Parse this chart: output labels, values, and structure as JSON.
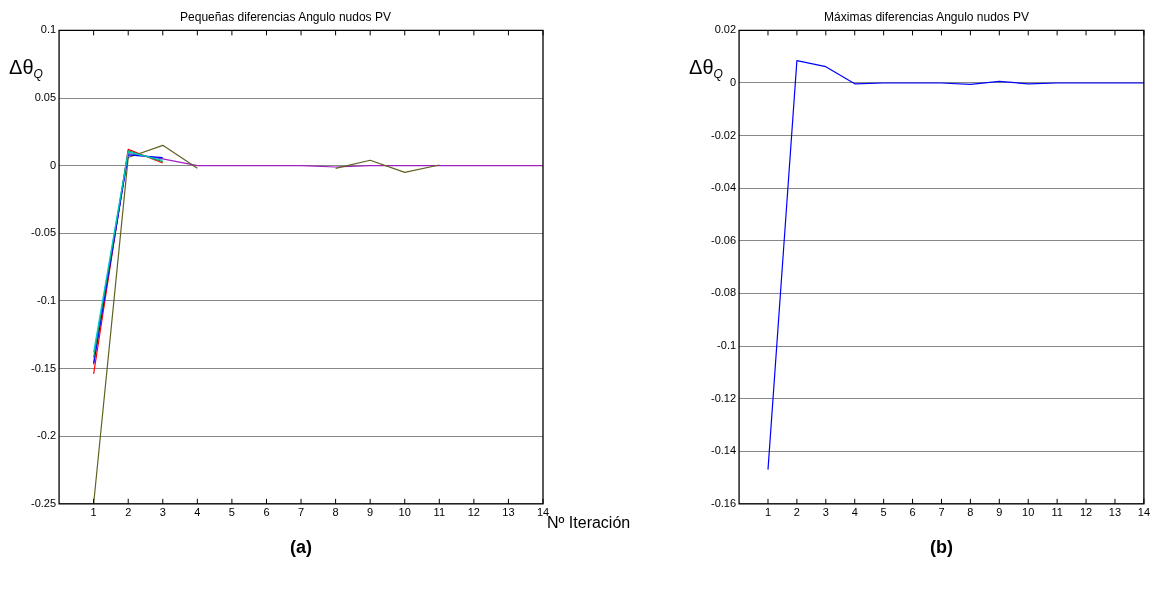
{
  "chart_data": [
    {
      "type": "line",
      "title": "Pequeñas diferencias Angulo nudos PV",
      "xlabel": "Nº Iteración",
      "ylabel": "Δθ$_{Q}$",
      "annotations": [
        "(a)"
      ],
      "x": [
        1,
        2,
        3,
        4,
        5,
        6,
        7,
        8,
        9,
        10,
        11,
        12,
        13,
        14
      ],
      "series": [
        {
          "color": "#00c8c8",
          "values": [
            -0.138,
            0.01,
            0.004,
            null,
            null,
            null,
            null,
            null,
            null,
            null,
            null,
            null,
            null,
            null
          ]
        },
        {
          "color": "#00a050",
          "values": [
            -0.142,
            0.011,
            0.003,
            null,
            null,
            null,
            null,
            null,
            null,
            null,
            null,
            null,
            null,
            null
          ]
        },
        {
          "color": "#0000ff",
          "values": [
            -0.146,
            0.008,
            0.006,
            null,
            null,
            null,
            null,
            null,
            null,
            null,
            null,
            null,
            null,
            null
          ]
        },
        {
          "color": "#ff0000",
          "values": [
            -0.154,
            0.012,
            0.002,
            null,
            null,
            null,
            null,
            null,
            null,
            null,
            null,
            null,
            null,
            null
          ]
        },
        {
          "color": "#606020",
          "values": [
            -0.25,
            0.006,
            0.015,
            -0.002,
            null,
            null,
            null,
            -0.002,
            0.004,
            -0.005,
            0.0005,
            null,
            null,
            null
          ]
        },
        {
          "color": "#a020c0",
          "values": [
            -0.147,
            0.009,
            0.005,
            0,
            0,
            0,
            0,
            -0.001,
            0,
            0,
            0,
            0,
            0,
            0
          ]
        }
      ],
      "xlim": [
        0,
        14
      ],
      "xticks": [
        1,
        2,
        3,
        4,
        5,
        6,
        7,
        8,
        9,
        10,
        11,
        12,
        13,
        14
      ],
      "ylim": [
        -0.25,
        0.1
      ],
      "yticks": [
        -0.25,
        -0.2,
        -0.15,
        -0.1,
        -0.05,
        0,
        0.05,
        0.1
      ],
      "grid": "y",
      "legend": false,
      "marker": "none",
      "line_style": "solid"
    },
    {
      "type": "line",
      "title": "Máximas diferencias Angulo nudos PV",
      "ylabel": "Δθ$_{Q}$",
      "annotations": [
        "(b)"
      ],
      "x": [
        1,
        2,
        3,
        4,
        5,
        6,
        7,
        8,
        9,
        10,
        11,
        12,
        13,
        14
      ],
      "series": [
        {
          "color": "#0000ff",
          "values": [
            -0.147,
            0.0085,
            0.0062,
            -0.0003,
            0,
            0,
            0,
            -0.0005,
            0.0006,
            -0.0003,
            0,
            0,
            0,
            0
          ]
        }
      ],
      "xlim": [
        0,
        14
      ],
      "xticks": [
        1,
        2,
        3,
        4,
        5,
        6,
        7,
        8,
        9,
        10,
        11,
        12,
        13,
        14
      ],
      "ylim": [
        -0.16,
        0.02
      ],
      "yticks": [
        -0.16,
        -0.14,
        -0.12,
        -0.1,
        -0.08,
        -0.06,
        -0.04,
        -0.02,
        0,
        0.02
      ],
      "grid": "y",
      "legend": false,
      "marker": "none",
      "line_style": "solid"
    }
  ]
}
